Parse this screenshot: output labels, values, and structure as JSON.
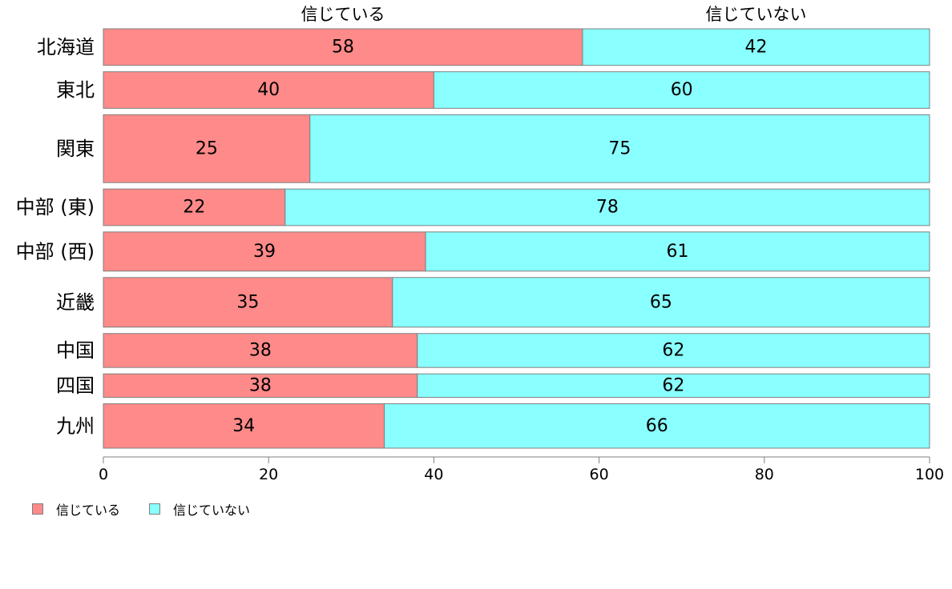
{
  "chart_data": {
    "type": "bar",
    "orientation": "horizontal",
    "stacked": true,
    "categories": [
      "北海道",
      "東北",
      "関東",
      "中部 (東)",
      "中部 (西)",
      "近畿",
      "中国",
      "四国",
      "九州"
    ],
    "series": [
      {
        "name": "信じている",
        "values": [
          58,
          40,
          25,
          22,
          39,
          35,
          38,
          38,
          34
        ],
        "color": "#FF8A8A"
      },
      {
        "name": "信じていない",
        "values": [
          42,
          60,
          75,
          78,
          61,
          65,
          62,
          62,
          66
        ],
        "color": "#8AFFFF"
      }
    ],
    "column_headers": [
      "信じている",
      "信じていない"
    ],
    "xlim": [
      0,
      100
    ],
    "xticks": [
      0,
      20,
      40,
      60,
      80,
      100
    ],
    "grid": false,
    "legend_position": "bottom-left",
    "bar_border_color": "#7f7f7f"
  },
  "legend": {
    "items": [
      {
        "label": "信じている",
        "color": "#FF8A8A"
      },
      {
        "label": "信じていない",
        "color": "#8AFFFF"
      }
    ]
  }
}
